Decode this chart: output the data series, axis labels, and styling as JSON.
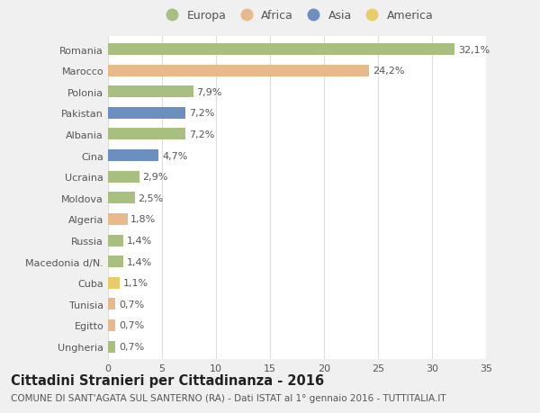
{
  "categories": [
    "Romania",
    "Marocco",
    "Polonia",
    "Pakistan",
    "Albania",
    "Cina",
    "Ucraina",
    "Moldova",
    "Algeria",
    "Russia",
    "Macedonia d/N.",
    "Cuba",
    "Tunisia",
    "Egitto",
    "Ungheria"
  ],
  "values": [
    32.1,
    24.2,
    7.9,
    7.2,
    7.2,
    4.7,
    2.9,
    2.5,
    1.8,
    1.4,
    1.4,
    1.1,
    0.7,
    0.7,
    0.7
  ],
  "labels": [
    "32,1%",
    "24,2%",
    "7,9%",
    "7,2%",
    "7,2%",
    "4,7%",
    "2,9%",
    "2,5%",
    "1,8%",
    "1,4%",
    "1,4%",
    "1,1%",
    "0,7%",
    "0,7%",
    "0,7%"
  ],
  "continents": [
    "Europa",
    "Africa",
    "Europa",
    "Asia",
    "Europa",
    "Asia",
    "Europa",
    "Europa",
    "Africa",
    "Europa",
    "Europa",
    "America",
    "Africa",
    "Africa",
    "Europa"
  ],
  "continent_colors": {
    "Europa": "#a8bf7f",
    "Africa": "#e8b98a",
    "Asia": "#6b8fbe",
    "America": "#e8cc6a"
  },
  "legend_order": [
    "Europa",
    "Africa",
    "Asia",
    "America"
  ],
  "background_color": "#f0f0f0",
  "plot_bg_color": "#ffffff",
  "title": "Cittadini Stranieri per Cittadinanza - 2016",
  "subtitle": "COMUNE DI SANT'AGATA SUL SANTERNO (RA) - Dati ISTAT al 1° gennaio 2016 - TUTTITALIA.IT",
  "xlim": [
    0,
    35
  ],
  "xticks": [
    0,
    5,
    10,
    15,
    20,
    25,
    30,
    35
  ],
  "grid_color": "#dddddd",
  "bar_height": 0.55,
  "title_fontsize": 10.5,
  "subtitle_fontsize": 7.5,
  "tick_fontsize": 8,
  "label_fontsize": 8,
  "legend_fontsize": 9
}
